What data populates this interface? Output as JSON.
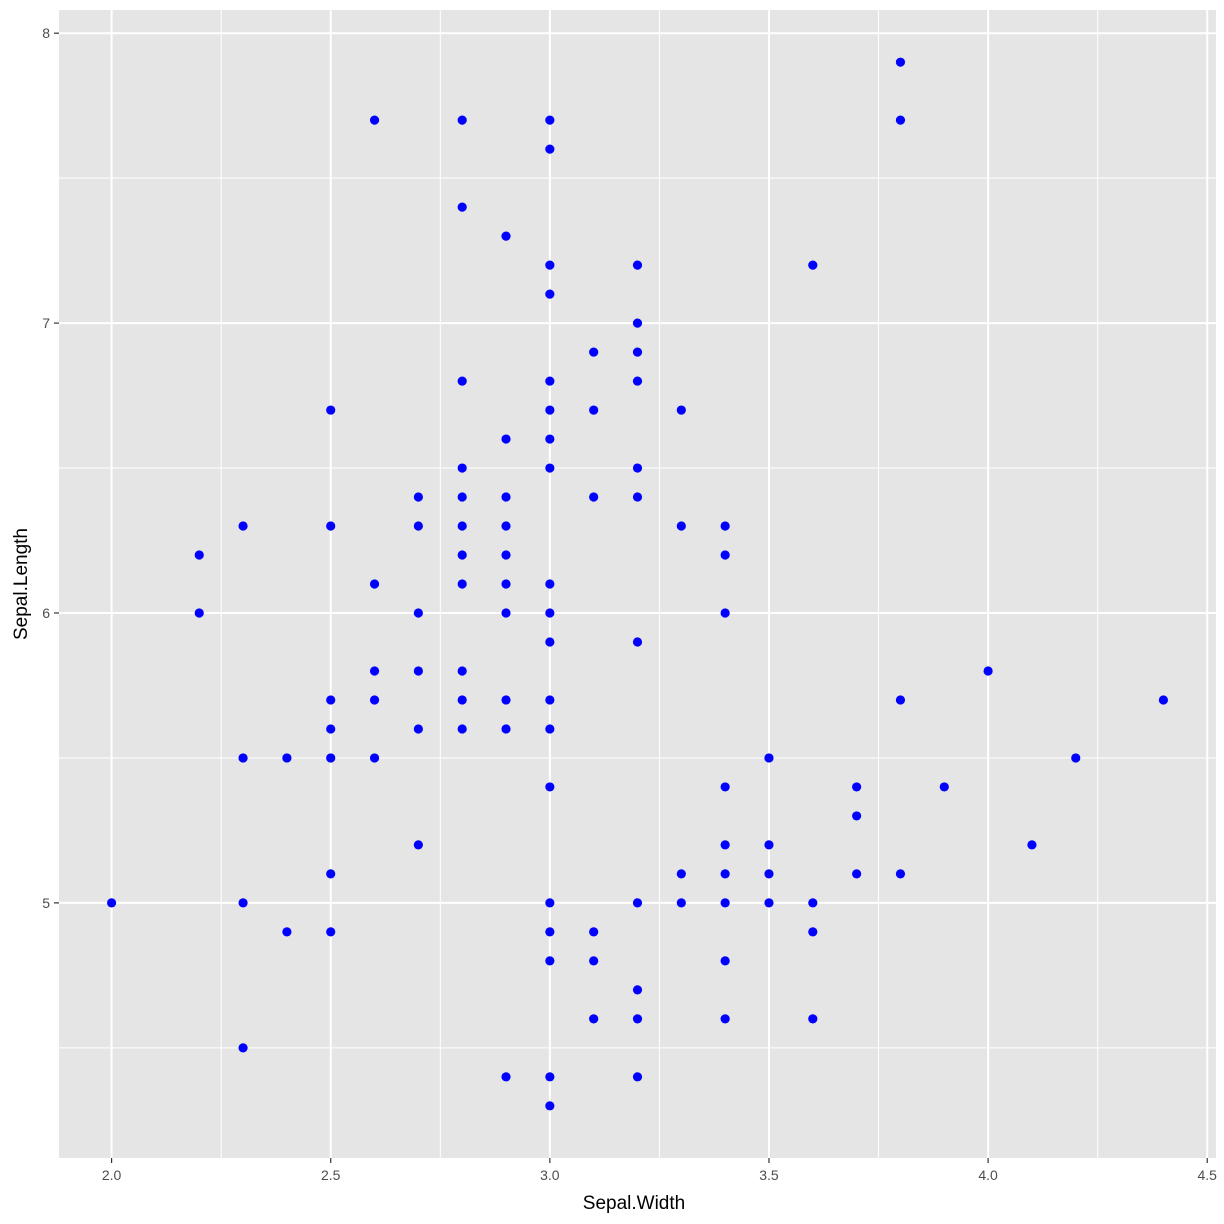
{
  "chart_data": {
    "type": "scatter",
    "title": "",
    "xlabel": "Sepal.Width",
    "ylabel": "Sepal.Length",
    "xlim": [
      1.88,
      4.52
    ],
    "ylim": [
      4.12,
      8.08
    ],
    "x_ticks": [
      2.0,
      2.5,
      3.0,
      3.5,
      4.0,
      4.5
    ],
    "x_tick_labels": [
      "2.0",
      "2.5",
      "3.0",
      "3.5",
      "4.0",
      "4.5"
    ],
    "y_ticks": [
      5,
      6,
      7,
      8
    ],
    "y_tick_labels": [
      "5",
      "6",
      "7",
      "8"
    ],
    "grid": true,
    "legend": false,
    "colors": {
      "points": "#0000ff",
      "panel": "#e5e5e5",
      "grid": "#ffffff"
    },
    "points": [
      [
        2.0,
        5.0
      ],
      [
        2.2,
        6.2
      ],
      [
        2.2,
        6.0
      ],
      [
        2.3,
        6.3
      ],
      [
        2.3,
        5.5
      ],
      [
        2.3,
        5.0
      ],
      [
        2.3,
        4.5
      ],
      [
        2.4,
        5.5
      ],
      [
        2.4,
        4.9
      ],
      [
        2.5,
        6.7
      ],
      [
        2.5,
        6.3
      ],
      [
        2.5,
        5.7
      ],
      [
        2.5,
        5.6
      ],
      [
        2.5,
        5.5
      ],
      [
        2.5,
        5.1
      ],
      [
        2.5,
        4.9
      ],
      [
        2.6,
        7.7
      ],
      [
        2.6,
        6.1
      ],
      [
        2.6,
        5.8
      ],
      [
        2.6,
        5.7
      ],
      [
        2.6,
        5.5
      ],
      [
        2.7,
        6.4
      ],
      [
        2.7,
        6.3
      ],
      [
        2.7,
        6.0
      ],
      [
        2.7,
        5.8
      ],
      [
        2.7,
        5.6
      ],
      [
        2.7,
        5.2
      ],
      [
        2.8,
        7.7
      ],
      [
        2.8,
        7.4
      ],
      [
        2.8,
        6.8
      ],
      [
        2.8,
        6.5
      ],
      [
        2.8,
        6.4
      ],
      [
        2.8,
        6.3
      ],
      [
        2.8,
        6.2
      ],
      [
        2.8,
        6.1
      ],
      [
        2.8,
        5.8
      ],
      [
        2.8,
        5.7
      ],
      [
        2.8,
        5.6
      ],
      [
        2.9,
        7.3
      ],
      [
        2.9,
        6.6
      ],
      [
        2.9,
        6.4
      ],
      [
        2.9,
        6.3
      ],
      [
        2.9,
        6.2
      ],
      [
        2.9,
        6.1
      ],
      [
        2.9,
        6.0
      ],
      [
        2.9,
        5.7
      ],
      [
        2.9,
        5.6
      ],
      [
        2.9,
        4.4
      ],
      [
        3.0,
        7.7
      ],
      [
        3.0,
        7.6
      ],
      [
        3.0,
        7.2
      ],
      [
        3.0,
        7.1
      ],
      [
        3.0,
        6.8
      ],
      [
        3.0,
        6.7
      ],
      [
        3.0,
        6.6
      ],
      [
        3.0,
        6.5
      ],
      [
        3.0,
        6.1
      ],
      [
        3.0,
        6.0
      ],
      [
        3.0,
        5.9
      ],
      [
        3.0,
        5.7
      ],
      [
        3.0,
        5.6
      ],
      [
        3.0,
        5.4
      ],
      [
        3.0,
        5.0
      ],
      [
        3.0,
        4.9
      ],
      [
        3.0,
        4.8
      ],
      [
        3.0,
        4.4
      ],
      [
        3.0,
        4.3
      ],
      [
        3.1,
        6.9
      ],
      [
        3.1,
        6.7
      ],
      [
        3.1,
        6.4
      ],
      [
        3.1,
        4.9
      ],
      [
        3.1,
        4.8
      ],
      [
        3.1,
        4.6
      ],
      [
        3.2,
        7.2
      ],
      [
        3.2,
        7.0
      ],
      [
        3.2,
        6.9
      ],
      [
        3.2,
        6.8
      ],
      [
        3.2,
        6.5
      ],
      [
        3.2,
        6.4
      ],
      [
        3.2,
        5.9
      ],
      [
        3.2,
        5.0
      ],
      [
        3.2,
        4.7
      ],
      [
        3.2,
        4.6
      ],
      [
        3.2,
        4.4
      ],
      [
        3.3,
        6.7
      ],
      [
        3.3,
        6.3
      ],
      [
        3.3,
        5.1
      ],
      [
        3.3,
        5.0
      ],
      [
        3.4,
        6.3
      ],
      [
        3.4,
        6.2
      ],
      [
        3.4,
        6.0
      ],
      [
        3.4,
        5.4
      ],
      [
        3.4,
        5.2
      ],
      [
        3.4,
        5.1
      ],
      [
        3.4,
        5.0
      ],
      [
        3.4,
        4.8
      ],
      [
        3.4,
        4.6
      ],
      [
        3.5,
        5.5
      ],
      [
        3.5,
        5.2
      ],
      [
        3.5,
        5.1
      ],
      [
        3.5,
        5.0
      ],
      [
        3.6,
        7.2
      ],
      [
        3.6,
        5.0
      ],
      [
        3.6,
        4.9
      ],
      [
        3.6,
        4.6
      ],
      [
        3.7,
        5.4
      ],
      [
        3.7,
        5.3
      ],
      [
        3.7,
        5.1
      ],
      [
        3.8,
        7.9
      ],
      [
        3.8,
        7.7
      ],
      [
        3.8,
        5.7
      ],
      [
        3.8,
        5.1
      ],
      [
        3.9,
        5.4
      ],
      [
        4.0,
        5.8
      ],
      [
        4.1,
        5.2
      ],
      [
        4.2,
        5.5
      ],
      [
        4.4,
        5.7
      ]
    ]
  }
}
